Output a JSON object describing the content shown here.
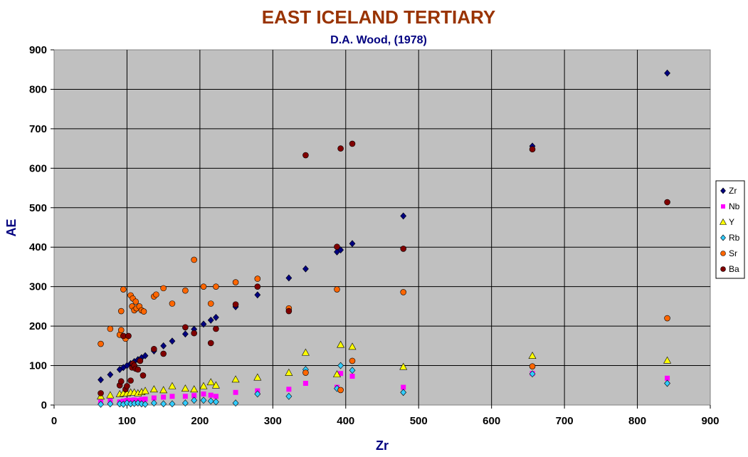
{
  "chart_data": {
    "type": "scatter",
    "title": "EAST ICELAND TERTIARY",
    "subtitle": "D.A. Wood, (1978)",
    "xlabel": "Zr",
    "ylabel": "AE",
    "xlim": [
      0,
      900
    ],
    "ylim": [
      0,
      900
    ],
    "x_ticks": [
      "0",
      "100",
      "200",
      "300",
      "400",
      "500",
      "600",
      "700",
      "800",
      "900"
    ],
    "y_ticks": [
      "0",
      "100",
      "200",
      "300",
      "400",
      "500",
      "600",
      "700",
      "800",
      "900"
    ],
    "grid": true,
    "legend_position": "right",
    "colors": {
      "title": "#993300",
      "subtitle": "#000080",
      "axis_label": "#000080",
      "plot_bg": "#c0c0c0",
      "grid": "#000000"
    },
    "series": [
      {
        "name": "Zr",
        "marker": "diamond",
        "color": "#000080",
        "points": [
          [
            64,
            64
          ],
          [
            77,
            77
          ],
          [
            90,
            90
          ],
          [
            95,
            95
          ],
          [
            100,
            100
          ],
          [
            105,
            105
          ],
          [
            110,
            110
          ],
          [
            115,
            115
          ],
          [
            120,
            120
          ],
          [
            125,
            125
          ],
          [
            137,
            137
          ],
          [
            150,
            150
          ],
          [
            162,
            162
          ],
          [
            180,
            180
          ],
          [
            192,
            192
          ],
          [
            205,
            205
          ],
          [
            215,
            215
          ],
          [
            222,
            222
          ],
          [
            249,
            249
          ],
          [
            279,
            279
          ],
          [
            322,
            322
          ],
          [
            345,
            345
          ],
          [
            388,
            388
          ],
          [
            393,
            393
          ],
          [
            409,
            409
          ],
          [
            479,
            479
          ],
          [
            656,
            656
          ],
          [
            841,
            841
          ]
        ]
      },
      {
        "name": "Nb",
        "marker": "square",
        "color": "#ff00ff",
        "points": [
          [
            64,
            8
          ],
          [
            77,
            10
          ],
          [
            90,
            8
          ],
          [
            95,
            10
          ],
          [
            100,
            12
          ],
          [
            105,
            12
          ],
          [
            110,
            13
          ],
          [
            115,
            12
          ],
          [
            120,
            14
          ],
          [
            125,
            15
          ],
          [
            137,
            18
          ],
          [
            150,
            20
          ],
          [
            162,
            22
          ],
          [
            180,
            22
          ],
          [
            192,
            24
          ],
          [
            205,
            28
          ],
          [
            215,
            25
          ],
          [
            222,
            22
          ],
          [
            249,
            32
          ],
          [
            279,
            36
          ],
          [
            322,
            40
          ],
          [
            345,
            55
          ],
          [
            388,
            45
          ],
          [
            393,
            80
          ],
          [
            409,
            73
          ],
          [
            479,
            45
          ],
          [
            656,
            80
          ],
          [
            841,
            68
          ]
        ]
      },
      {
        "name": "Y",
        "marker": "triangle",
        "color": "#ffff00",
        "points": [
          [
            64,
            22
          ],
          [
            77,
            25
          ],
          [
            90,
            28
          ],
          [
            95,
            30
          ],
          [
            100,
            30
          ],
          [
            105,
            32
          ],
          [
            110,
            32
          ],
          [
            115,
            30
          ],
          [
            120,
            33
          ],
          [
            125,
            36
          ],
          [
            137,
            40
          ],
          [
            150,
            38
          ],
          [
            162,
            48
          ],
          [
            180,
            42
          ],
          [
            192,
            40
          ],
          [
            205,
            48
          ],
          [
            215,
            58
          ],
          [
            222,
            50
          ],
          [
            249,
            65
          ],
          [
            279,
            70
          ],
          [
            322,
            82
          ],
          [
            345,
            133
          ],
          [
            388,
            78
          ],
          [
            393,
            153
          ],
          [
            409,
            148
          ],
          [
            479,
            97
          ],
          [
            656,
            125
          ],
          [
            841,
            113
          ]
        ]
      },
      {
        "name": "Rb",
        "marker": "diamond",
        "color": "#33ccff",
        "points": [
          [
            64,
            2
          ],
          [
            77,
            3
          ],
          [
            90,
            3
          ],
          [
            95,
            2
          ],
          [
            100,
            5
          ],
          [
            105,
            3
          ],
          [
            110,
            4
          ],
          [
            115,
            5
          ],
          [
            120,
            3
          ],
          [
            125,
            2
          ],
          [
            137,
            5
          ],
          [
            150,
            3
          ],
          [
            162,
            3
          ],
          [
            180,
            5
          ],
          [
            192,
            12
          ],
          [
            205,
            12
          ],
          [
            215,
            10
          ],
          [
            222,
            8
          ],
          [
            249,
            5
          ],
          [
            279,
            28
          ],
          [
            322,
            22
          ],
          [
            345,
            90
          ],
          [
            388,
            42
          ],
          [
            393,
            100
          ],
          [
            409,
            88
          ],
          [
            479,
            32
          ],
          [
            656,
            79
          ],
          [
            841,
            55
          ]
        ]
      },
      {
        "name": "Sr",
        "marker": "circle",
        "color": "#ff6600",
        "points": [
          [
            64,
            155
          ],
          [
            77,
            193
          ],
          [
            90,
            178
          ],
          [
            92,
            190
          ],
          [
            92,
            238
          ],
          [
            95,
            293
          ],
          [
            98,
            168
          ],
          [
            105,
            278
          ],
          [
            107,
            250
          ],
          [
            108,
            270
          ],
          [
            110,
            240
          ],
          [
            112,
            262
          ],
          [
            113,
            245
          ],
          [
            117,
            250
          ],
          [
            120,
            240
          ],
          [
            123,
            237
          ],
          [
            137,
            275
          ],
          [
            140,
            280
          ],
          [
            150,
            296
          ],
          [
            162,
            257
          ],
          [
            180,
            290
          ],
          [
            192,
            368
          ],
          [
            205,
            300
          ],
          [
            215,
            257
          ],
          [
            222,
            300
          ],
          [
            249,
            311
          ],
          [
            279,
            320
          ],
          [
            322,
            245
          ],
          [
            345,
            82
          ],
          [
            388,
            293
          ],
          [
            393,
            38
          ],
          [
            409,
            112
          ],
          [
            479,
            286
          ],
          [
            656,
            98
          ],
          [
            841,
            220
          ]
        ]
      },
      {
        "name": "Ba",
        "marker": "circle",
        "color": "#800000",
        "points": [
          [
            64,
            30
          ],
          [
            90,
            50
          ],
          [
            92,
            60
          ],
          [
            95,
            175
          ],
          [
            98,
            40
          ],
          [
            100,
            48
          ],
          [
            102,
            175
          ],
          [
            105,
            62
          ],
          [
            107,
            95
          ],
          [
            108,
            105
          ],
          [
            110,
            100
          ],
          [
            112,
            92
          ],
          [
            115,
            90
          ],
          [
            118,
            112
          ],
          [
            122,
            75
          ],
          [
            137,
            142
          ],
          [
            150,
            130
          ],
          [
            180,
            197
          ],
          [
            192,
            182
          ],
          [
            215,
            157
          ],
          [
            222,
            193
          ],
          [
            249,
            255
          ],
          [
            279,
            300
          ],
          [
            322,
            238
          ],
          [
            345,
            633
          ],
          [
            388,
            401
          ],
          [
            393,
            650
          ],
          [
            409,
            662
          ],
          [
            479,
            396
          ],
          [
            656,
            648
          ],
          [
            841,
            514
          ]
        ]
      }
    ]
  }
}
